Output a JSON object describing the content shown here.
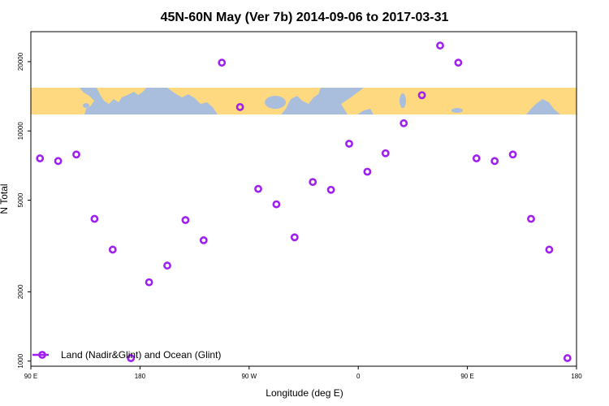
{
  "chart_data": {
    "type": "scatter",
    "title": "45N-60N May (Ver 7b)   2014-09-06 to 2017-03-31",
    "xlabel": "Longitude (deg E)",
    "ylabel": "N Total",
    "x_ticks": [
      {
        "value": 90,
        "label": "90 E"
      },
      {
        "value": 180,
        "label": "180"
      },
      {
        "value": 270,
        "label": "90 W"
      },
      {
        "value": 360,
        "label": "0"
      },
      {
        "value": 450,
        "label": "90 E"
      },
      {
        "value": 540,
        "label": "180"
      }
    ],
    "y_ticks": [
      {
        "value": 1000,
        "label": "1000"
      },
      {
        "value": 2000,
        "label": "2000"
      },
      {
        "value": 5000,
        "label": "5000"
      },
      {
        "value": 10000,
        "label": "10000"
      },
      {
        "value": 20000,
        "label": "20000"
      }
    ],
    "xlim": [
      90,
      540
    ],
    "ylim": [
      950,
      27000
    ],
    "y_scale": "log",
    "legend_position": "bottom-left",
    "map_band": {
      "lat_range": "45N-60N",
      "land_color": "#FFD97F",
      "ocean_color": "#A9BEDD"
    },
    "series": [
      {
        "name": "Land (Nadir&Glint) and Ocean (Glint)",
        "color": "#A020F0",
        "marker": "open-circle",
        "points": [
          {
            "x": 97.5,
            "y": 7600
          },
          {
            "x": 112.5,
            "y": 7400
          },
          {
            "x": 127.5,
            "y": 7900
          },
          {
            "x": 142.5,
            "y": 4150
          },
          {
            "x": 157.5,
            "y": 3050
          },
          {
            "x": 172.5,
            "y": 1030
          },
          {
            "x": 187.5,
            "y": 2200
          },
          {
            "x": 202.5,
            "y": 2600
          },
          {
            "x": 217.5,
            "y": 4100
          },
          {
            "x": 232.5,
            "y": 3350
          },
          {
            "x": 247.5,
            "y": 19800
          },
          {
            "x": 262.5,
            "y": 12700
          },
          {
            "x": 277.5,
            "y": 5600
          },
          {
            "x": 292.5,
            "y": 4800
          },
          {
            "x": 307.5,
            "y": 3450
          },
          {
            "x": 322.5,
            "y": 6000
          },
          {
            "x": 337.5,
            "y": 5550
          },
          {
            "x": 352.5,
            "y": 8800
          },
          {
            "x": 367.5,
            "y": 6650
          },
          {
            "x": 382.5,
            "y": 8000
          },
          {
            "x": 397.5,
            "y": 10800
          },
          {
            "x": 412.5,
            "y": 14300
          },
          {
            "x": 427.5,
            "y": 23500
          },
          {
            "x": 442.5,
            "y": 19800
          },
          {
            "x": 457.5,
            "y": 7600
          },
          {
            "x": 472.5,
            "y": 7400
          },
          {
            "x": 487.5,
            "y": 7900
          },
          {
            "x": 502.5,
            "y": 4150
          },
          {
            "x": 517.5,
            "y": 3050
          },
          {
            "x": 532.5,
            "y": 1030
          }
        ]
      }
    ]
  }
}
